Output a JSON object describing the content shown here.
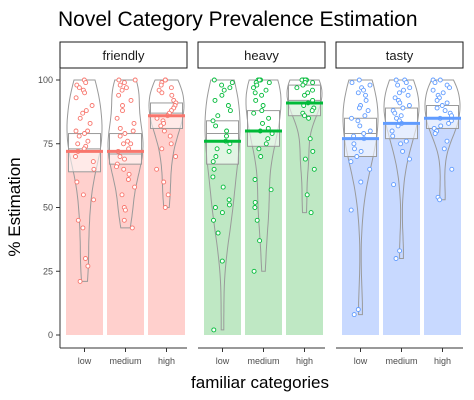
{
  "chart_data": {
    "type": "bar",
    "title": "Novel Category Prevalence Estimation",
    "xlabel": "familiar categories",
    "ylabel": "% Estimation",
    "ylim": [
      0,
      100
    ],
    "yticks": [
      0,
      25,
      50,
      75,
      100
    ],
    "categories": [
      "low",
      "medium",
      "high"
    ],
    "facets": [
      {
        "name": "friendly",
        "color": "#f8766d",
        "fill": "#ffd0cd",
        "bars": [
          {
            "category": "low",
            "mean": 72,
            "q1": 64,
            "median": 73,
            "q3": 79,
            "points": [
              100,
              99,
              98,
              97,
              96,
              95,
              93,
              90,
              88,
              87,
              85,
              83,
              80,
              80,
              79,
              78,
              76,
              75,
              74,
              73,
              72,
              70,
              68,
              65,
              60,
              55,
              53,
              45,
              42,
              30,
              27,
              21
            ]
          },
          {
            "category": "medium",
            "mean": 72,
            "q1": 67,
            "median": 71,
            "q3": 79,
            "points": [
              100,
              100,
              99,
              98,
              97,
              96,
              94,
              92,
              90,
              88,
              85,
              83,
              81,
              80,
              79,
              78,
              76,
              75,
              75,
              73,
              72,
              70,
              69,
              67,
              66,
              65,
              63,
              61,
              58,
              55,
              50,
              49,
              45,
              42
            ]
          },
          {
            "category": "high",
            "mean": 86,
            "q1": 81,
            "median": 87,
            "q3": 91,
            "points": [
              100,
              100,
              99,
              98,
              97,
              96,
              95,
              94,
              92,
              91,
              90,
              89,
              88,
              87,
              86,
              85,
              84,
              83,
              82,
              80,
              78,
              75,
              73,
              70,
              65,
              60,
              55,
              50
            ]
          }
        ]
      },
      {
        "name": "heavy",
        "color": "#00ba38",
        "fill": "#bfe8c4",
        "bars": [
          {
            "category": "low",
            "mean": 76,
            "q1": 67,
            "median": 79,
            "q3": 84,
            "points": [
              100,
              99,
              98,
              97,
              96,
              94,
              92,
              90,
              88,
              86,
              84,
              82,
              80,
              78,
              76,
              75,
              73,
              72,
              70,
              68,
              65,
              62,
              58,
              53,
              51,
              50,
              48,
              45,
              40,
              29,
              2
            ]
          },
          {
            "category": "medium",
            "mean": 80,
            "q1": 74,
            "median": 80,
            "q3": 88,
            "points": [
              100,
              100,
              100,
              99,
              99,
              98,
              97,
              96,
              95,
              94,
              92,
              90,
              88,
              87,
              85,
              83,
              81,
              80,
              79,
              77,
              75,
              73,
              70,
              61,
              57,
              52,
              50,
              45,
              37,
              25
            ]
          },
          {
            "category": "high",
            "mean": 91,
            "q1": 86,
            "median": 92,
            "q3": 98,
            "points": [
              100,
              100,
              100,
              100,
              99,
              99,
              98,
              97,
              96,
              95,
              94,
              92,
              91,
              90,
              89,
              88,
              87,
              86,
              85,
              77,
              72,
              69,
              65,
              55,
              48
            ]
          }
        ]
      },
      {
        "name": "tasty",
        "color": "#619cff",
        "fill": "#c8d9ff",
        "bars": [
          {
            "category": "low",
            "mean": 77,
            "q1": 70,
            "median": 79,
            "q3": 85,
            "points": [
              100,
              99,
              98,
              97,
              96,
              95,
              94,
              92,
              90,
              89,
              88,
              86,
              85,
              84,
              82,
              80,
              79,
              78,
              77,
              75,
              73,
              72,
              70,
              68,
              65,
              60,
              49,
              10,
              8
            ]
          },
          {
            "category": "medium",
            "mean": 83,
            "q1": 77,
            "median": 83,
            "q3": 89,
            "points": [
              100,
              100,
              99,
              98,
              97,
              96,
              95,
              94,
              93,
              92,
              91,
              90,
              89,
              88,
              87,
              86,
              85,
              84,
              83,
              82,
              80,
              78,
              76,
              75,
              72,
              69,
              59,
              33,
              30
            ]
          },
          {
            "category": "high",
            "mean": 85,
            "q1": 81,
            "median": 85,
            "q3": 90,
            "points": [
              100,
              100,
              99,
              98,
              97,
              96,
              95,
              94,
              93,
              92,
              91,
              90,
              89,
              88,
              87,
              86,
              85,
              84,
              83,
              82,
              81,
              80,
              79,
              76,
              73,
              65,
              54,
              53
            ]
          }
        ]
      }
    ],
    "legend": "none",
    "grid": false
  }
}
